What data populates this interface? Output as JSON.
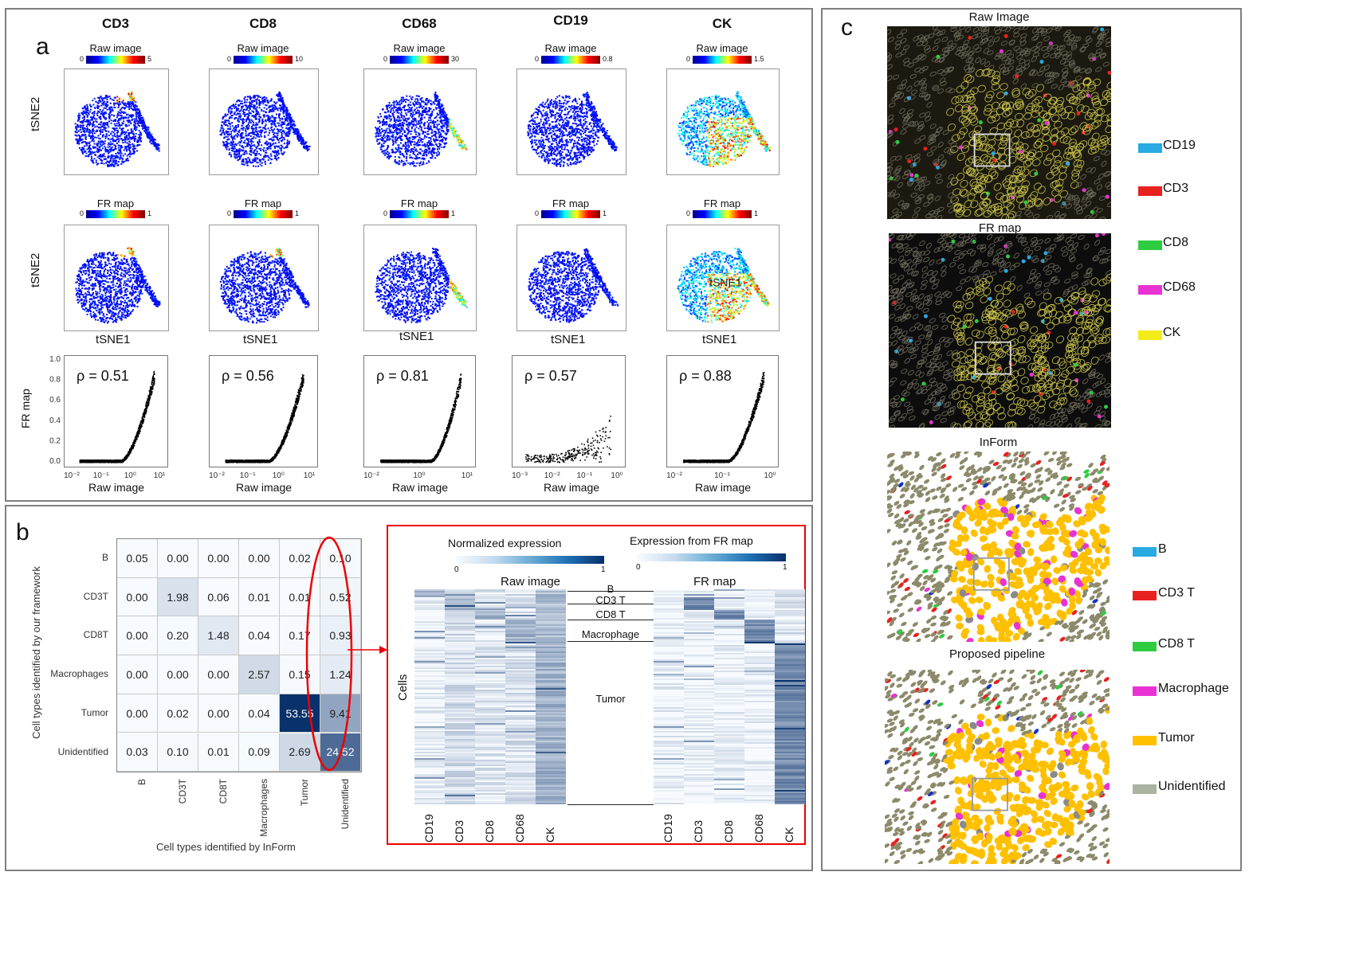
{
  "panel_a": {
    "letter": "a",
    "markers": [
      "CD3",
      "CD8",
      "CD68",
      "CD19",
      "CK"
    ],
    "raw_label": "Raw image",
    "fr_label": "FR map",
    "raw_colorbar_max": [
      "5",
      "10",
      "30",
      "0.8",
      "1.5"
    ],
    "fr_colorbar_max": [
      "1",
      "1",
      "1",
      "1",
      "1"
    ],
    "colorbar_min": "0",
    "tsne_y": "tSNE2",
    "tsne_x": "tSNE1",
    "scatter_ylabel": "FR map",
    "scatter_xlabel": "Raw image",
    "rho": [
      "ρ = 0.51",
      "ρ = 0.56",
      "ρ = 0.81",
      "ρ = 0.57",
      "ρ = 0.88"
    ],
    "scatter_yticks": [
      "1.0",
      "0.8",
      "0.6",
      "0.4",
      "0.2",
      "0.0"
    ],
    "xticks": [
      [
        "10⁻²",
        "10⁻¹",
        "10⁰",
        "10¹"
      ],
      [
        "10⁻²",
        "10⁻¹",
        "10⁰",
        "10¹"
      ],
      [
        "10⁻²",
        "10⁰",
        "10¹"
      ],
      [
        "10⁻³",
        "10⁻²",
        "10⁻¹",
        "10⁰"
      ],
      [
        "10⁻²",
        "10⁻¹",
        "10⁰"
      ]
    ]
  },
  "panel_b": {
    "letter": "b",
    "ylabel": "Cell types identified by our framework",
    "xlabel": "Cell types identified by InForm",
    "rows": [
      "B",
      "CD3T",
      "CD8T",
      "Macrophages",
      "Tumor",
      "Unidentified"
    ],
    "cols": [
      "B",
      "CD3T",
      "CD8T",
      "Macrophages",
      "Tumor",
      "Unidentified"
    ],
    "matrix": [
      [
        "0.05",
        "0.00",
        "0.00",
        "0.00",
        "0.02",
        "0.10"
      ],
      [
        "0.00",
        "1.98",
        "0.06",
        "0.01",
        "0.01",
        "0.52"
      ],
      [
        "0.00",
        "0.20",
        "1.48",
        "0.04",
        "0.17",
        "0.93"
      ],
      [
        "0.00",
        "0.00",
        "0.00",
        "2.57",
        "0.15",
        "1.24"
      ],
      [
        "0.00",
        "0.02",
        "0.00",
        "0.04",
        "53.55",
        "9.41"
      ],
      [
        "0.03",
        "0.10",
        "0.01",
        "0.09",
        "2.69",
        "24.52"
      ]
    ],
    "heatmap": {
      "norm_title": "Normalized expression",
      "fr_title": "Expression from FR map",
      "cb_min": "0",
      "cb_max": "1",
      "raw_sub": "Raw image",
      "fr_sub": "FR map",
      "cells_label": "Cells",
      "groups": [
        "B",
        "CD3 T",
        "CD8 T",
        "Macrophage",
        "Tumor"
      ],
      "cols": [
        "CD19",
        "CD3",
        "CD8",
        "CD68",
        "CK"
      ]
    }
  },
  "panel_c": {
    "letter": "c",
    "titles": [
      "Raw Image",
      "FR map",
      "InForm",
      "Proposed pipeline"
    ],
    "legend1": [
      {
        "name": "CD19",
        "color": "#29aae1"
      },
      {
        "name": "CD3",
        "color": "#e8211f"
      },
      {
        "name": "CD8",
        "color": "#2ecc40"
      },
      {
        "name": "CD68",
        "color": "#e833d2"
      },
      {
        "name": "CK",
        "color": "#f3ec19"
      }
    ],
    "legend2": [
      {
        "name": "B",
        "color": "#29aae1"
      },
      {
        "name": "CD3 T",
        "color": "#e8211f"
      },
      {
        "name": "CD8 T",
        "color": "#2ecc40"
      },
      {
        "name": "Macrophage",
        "color": "#e833d2"
      },
      {
        "name": "Tumor",
        "color": "#ffc000"
      },
      {
        "name": "Unidentified",
        "color": "#a9b3a0"
      }
    ]
  }
}
